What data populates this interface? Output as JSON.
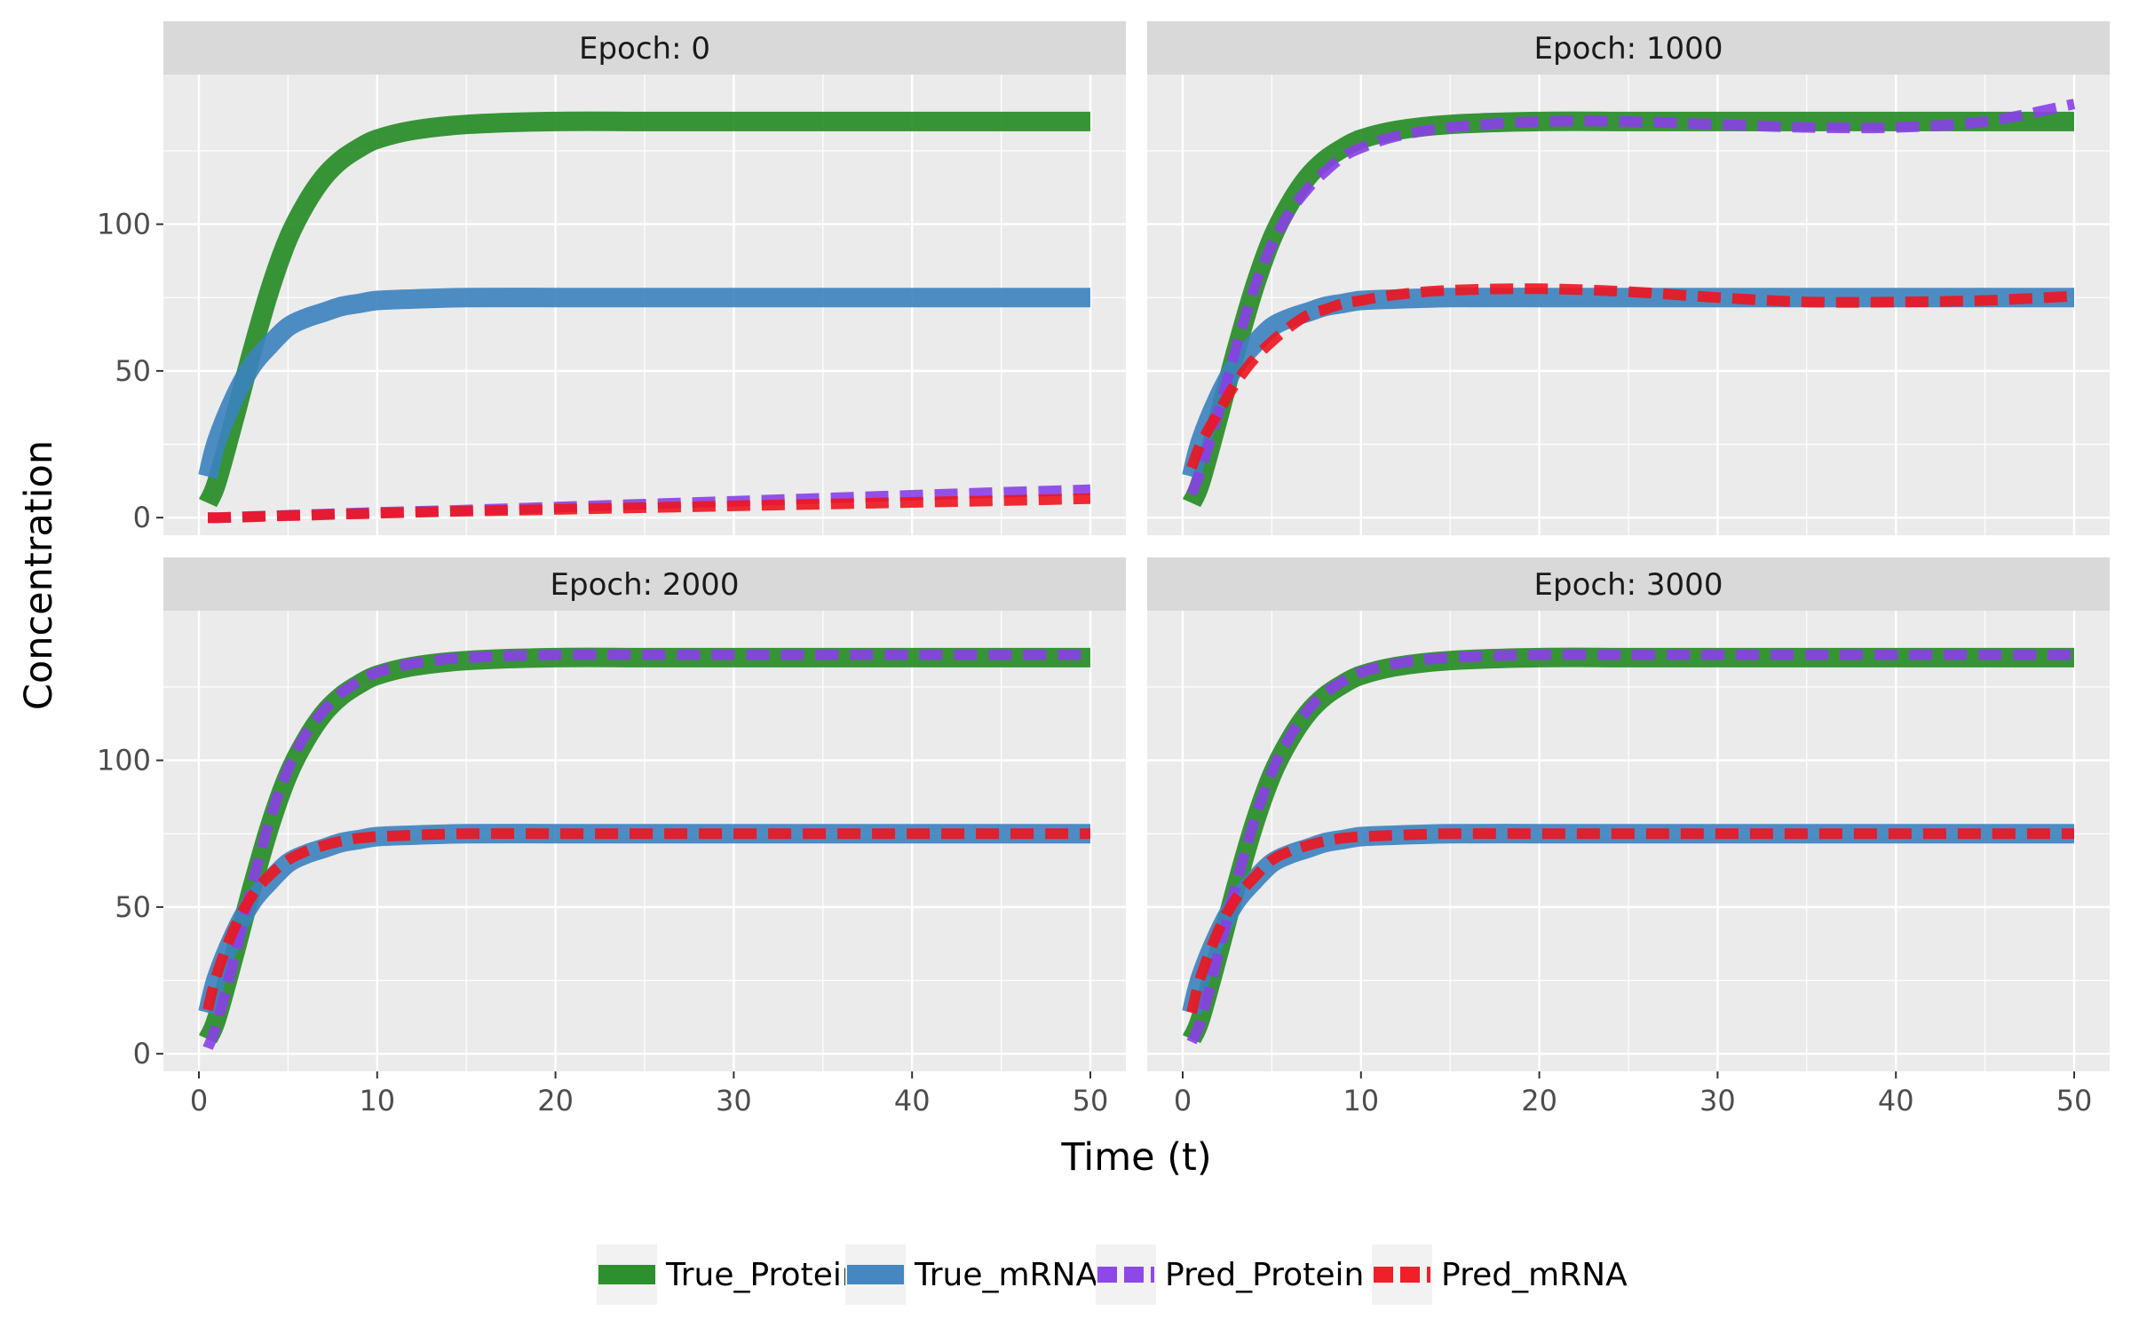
{
  "chart_data": {
    "type": "line",
    "xlabel": "Time (t)",
    "ylabel": "Concentration",
    "xlim": [
      0,
      50
    ],
    "ylim": [
      -6,
      151
    ],
    "x_ticks": [
      0,
      10,
      20,
      30,
      40,
      50
    ],
    "y_ticks": [
      0,
      50,
      100
    ],
    "grid": true,
    "legend_position": "bottom",
    "series_styles": {
      "True_Protein": {
        "color": "#228B22",
        "dash": "solid"
      },
      "True_mRNA": {
        "color": "#3B82BF",
        "dash": "solid"
      },
      "Pred_Protein": {
        "color": "#8A3FE8",
        "dash": "dashed"
      },
      "Pred_mRNA": {
        "color": "#F0141E",
        "dash": "dashed"
      }
    },
    "panels": [
      {
        "title": "Epoch: 0",
        "x": [
          0.5,
          1,
          2,
          3,
          4,
          5,
          6,
          7,
          8,
          9,
          10,
          12,
          15,
          20,
          25,
          30,
          35,
          40,
          45,
          50
        ],
        "series": [
          {
            "name": "True_Protein",
            "values": [
              5,
              12,
              34,
              57,
              78,
              95,
              107,
              116,
              122,
              126,
              129,
              132,
              134,
              135,
              135,
              135,
              135,
              135,
              135,
              135
            ]
          },
          {
            "name": "True_mRNA",
            "values": [
              14,
              26,
              41,
              52,
              59,
              65,
              68,
              70,
              72,
              73,
              74,
              74.5,
              75,
              75,
              75,
              75,
              75,
              75,
              75,
              75
            ]
          },
          {
            "name": "Pred_Protein",
            "values": [
              0,
              0,
              0.2,
              0.4,
              0.6,
              0.8,
              1,
              1.2,
              1.4,
              1.6,
              1.8,
              2.1,
              2.6,
              3.6,
              4.6,
              5.6,
              6.6,
              7.6,
              8.6,
              9.5
            ]
          },
          {
            "name": "Pred_mRNA",
            "values": [
              0,
              0,
              0.1,
              0.3,
              0.5,
              0.7,
              0.8,
              1,
              1.2,
              1.3,
              1.5,
              1.8,
              2.2,
              2.8,
              3.4,
              4,
              4.6,
              5.2,
              5.8,
              6.5
            ]
          }
        ]
      },
      {
        "title": "Epoch: 1000",
        "x": [
          0.5,
          1,
          2,
          3,
          4,
          5,
          6,
          7,
          8,
          9,
          10,
          12,
          15,
          20,
          25,
          30,
          35,
          40,
          45,
          50
        ],
        "series": [
          {
            "name": "True_Protein",
            "values": [
              5,
              12,
              34,
              57,
              78,
              95,
              107,
              116,
              122,
              126,
              129,
              132,
              134,
              135,
              135,
              135,
              135,
              135,
              135,
              135
            ]
          },
          {
            "name": "True_mRNA",
            "values": [
              14,
              26,
              41,
              52,
              59,
              65,
              68,
              70,
              72,
              73,
              74,
              74.5,
              75,
              75,
              75,
              75,
              75,
              75,
              75,
              75
            ]
          },
          {
            "name": "Pred_Protein",
            "values": [
              8,
              16,
              36,
              58,
              78,
              93,
              104,
              112,
              118,
              123,
              126,
              130,
              133,
              135,
              135,
              134,
              133,
              133,
              135,
              141
            ]
          },
          {
            "name": "Pred_mRNA",
            "values": [
              17,
              25,
              36,
              46,
              54,
              60,
              65,
              69,
              71,
              73,
              74,
              76,
              77.5,
              78,
              77,
              75,
              73.5,
              73.5,
              74,
              75.5
            ]
          }
        ]
      },
      {
        "title": "Epoch: 2000",
        "x": [
          0.5,
          1,
          2,
          3,
          4,
          5,
          6,
          7,
          8,
          9,
          10,
          12,
          15,
          20,
          25,
          30,
          35,
          40,
          45,
          50
        ],
        "series": [
          {
            "name": "True_Protein",
            "values": [
              5,
              12,
              34,
              57,
              78,
              95,
              107,
              116,
              122,
              126,
              129,
              132,
              134,
              135,
              135,
              135,
              135,
              135,
              135,
              135
            ]
          },
          {
            "name": "True_mRNA",
            "values": [
              14,
              26,
              41,
              52,
              59,
              65,
              68,
              70,
              72,
              73,
              74,
              74.5,
              75,
              75,
              75,
              75,
              75,
              75,
              75,
              75
            ]
          },
          {
            "name": "Pred_Protein",
            "values": [
              2,
              10,
              33,
              58,
              80,
              97,
              109,
              117,
              123,
              127,
              130,
              133,
              135,
              136,
              136,
              136,
              136,
              136,
              136,
              136
            ]
          },
          {
            "name": "Pred_mRNA",
            "values": [
              15,
              27,
              43,
              54,
              61,
              66,
              69,
              71,
              72.5,
              73.5,
              74,
              74.5,
              75,
              75,
              75,
              75,
              75,
              75,
              75,
              75
            ]
          }
        ]
      },
      {
        "title": "Epoch: 3000",
        "x": [
          0.5,
          1,
          2,
          3,
          4,
          5,
          6,
          7,
          8,
          9,
          10,
          12,
          15,
          20,
          25,
          30,
          35,
          40,
          45,
          50
        ],
        "series": [
          {
            "name": "True_Protein",
            "values": [
              5,
              12,
              34,
              57,
              78,
              95,
              107,
              116,
              122,
              126,
              129,
              132,
              134,
              135,
              135,
              135,
              135,
              135,
              135,
              135
            ]
          },
          {
            "name": "True_mRNA",
            "values": [
              14,
              26,
              41,
              52,
              59,
              65,
              68,
              70,
              72,
              73,
              74,
              74.5,
              75,
              75,
              75,
              75,
              75,
              75,
              75,
              75
            ]
          },
          {
            "name": "Pred_Protein",
            "values": [
              4,
              11,
              34,
              58,
              79,
              96,
              108,
              117,
              123,
              127,
              130,
              133,
              135,
              136,
              136,
              136,
              136,
              136,
              136,
              136
            ]
          },
          {
            "name": "Pred_mRNA",
            "values": [
              14,
              26,
              42,
              53,
              60,
              66,
              69,
              71,
              72.5,
              73.5,
              74,
              74.5,
              75,
              75,
              75,
              75,
              75,
              75,
              75,
              75
            ]
          }
        ]
      }
    ]
  }
}
